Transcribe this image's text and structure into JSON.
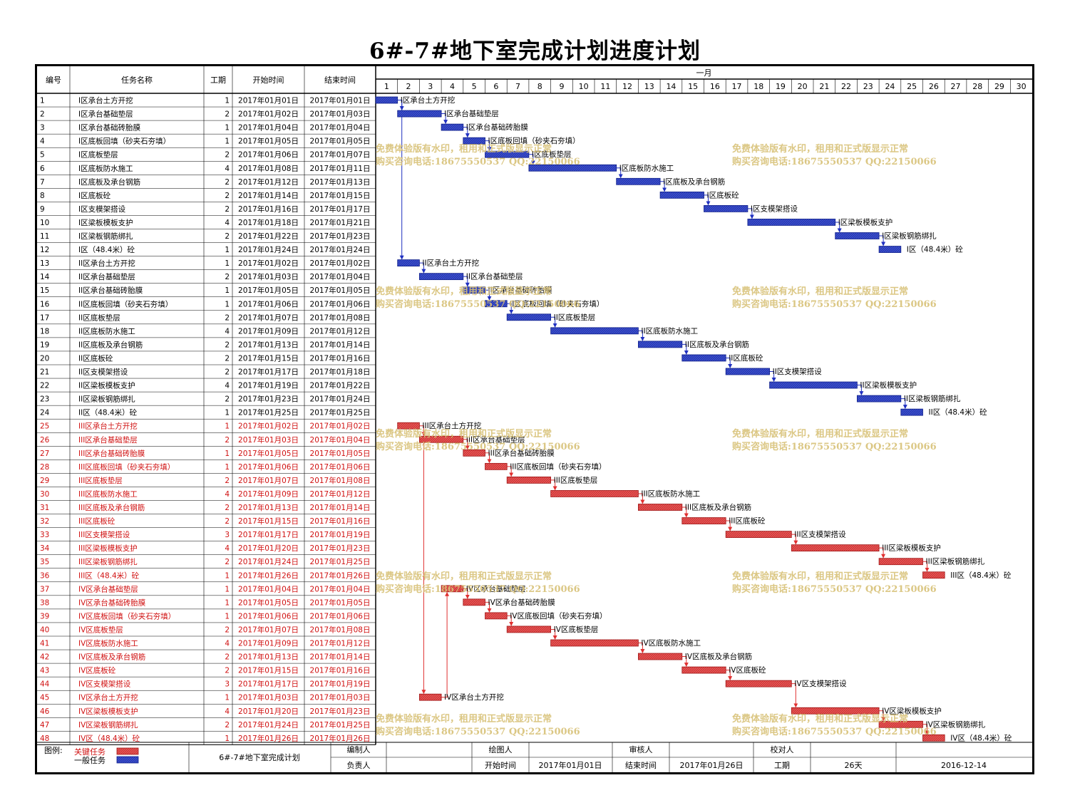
{
  "title": "6#-7#地下室完成计划进度计划",
  "headers": {
    "id": "编号",
    "name": "任务名称",
    "dur": "工期",
    "start": "开始时间",
    "end": "结束时间",
    "month": "一月"
  },
  "days": [
    "1",
    "2",
    "3",
    "4",
    "5",
    "6",
    "7",
    "8",
    "9",
    "10",
    "11",
    "12",
    "13",
    "14",
    "15",
    "16",
    "17",
    "18",
    "19",
    "20",
    "21",
    "22",
    "23",
    "24",
    "25",
    "26",
    "27",
    "28",
    "29",
    "30"
  ],
  "colors": {
    "critical": "#e85555",
    "normal": "#3a4fcf",
    "criticalText": "#d01010",
    "link_red": "#e03030",
    "link_blue": "#2030c0",
    "watermark": "#d8c177"
  },
  "watermark": {
    "line1": "免费体验版有水印，租用和正式版显示正常",
    "line2": "购买咨询电话:18675550537 QQ:22150066"
  },
  "chart_data": {
    "type": "gantt",
    "x_unit": "day of January 2017",
    "xlim": [
      1,
      30
    ],
    "tasks": [
      {
        "id": "1",
        "name": "I区承台土方开挖",
        "dur": "1",
        "start": "2017年01月01日",
        "end": "2017年01月01日",
        "s": 1,
        "e": 1,
        "critical": false
      },
      {
        "id": "2",
        "name": "I区承台基础垫层",
        "dur": "2",
        "start": "2017年01月02日",
        "end": "2017年01月03日",
        "s": 2,
        "e": 3,
        "critical": false
      },
      {
        "id": "3",
        "name": "I区承台基础砖胎膜",
        "dur": "1",
        "start": "2017年01月04日",
        "end": "2017年01月04日",
        "s": 4,
        "e": 4,
        "critical": false
      },
      {
        "id": "4",
        "name": "I区底板回填（砂夹石夯填）",
        "dur": "1",
        "start": "2017年01月05日",
        "end": "2017年01月05日",
        "s": 5,
        "e": 5,
        "critical": false
      },
      {
        "id": "5",
        "name": "I区底板垫层",
        "dur": "2",
        "start": "2017年01月06日",
        "end": "2017年01月07日",
        "s": 6,
        "e": 7,
        "critical": false
      },
      {
        "id": "6",
        "name": "I区底板防水施工",
        "dur": "4",
        "start": "2017年01月08日",
        "end": "2017年01月11日",
        "s": 8,
        "e": 11,
        "critical": false
      },
      {
        "id": "7",
        "name": "I区底板及承台钢筋",
        "dur": "2",
        "start": "2017年01月12日",
        "end": "2017年01月13日",
        "s": 12,
        "e": 13,
        "critical": false
      },
      {
        "id": "8",
        "name": "I区底板砼",
        "dur": "2",
        "start": "2017年01月14日",
        "end": "2017年01月15日",
        "s": 14,
        "e": 15,
        "critical": false
      },
      {
        "id": "9",
        "name": "I区支模架搭设",
        "dur": "2",
        "start": "2017年01月16日",
        "end": "2017年01月17日",
        "s": 16,
        "e": 17,
        "critical": false
      },
      {
        "id": "10",
        "name": "I区梁板模板支护",
        "dur": "4",
        "start": "2017年01月18日",
        "end": "2017年01月21日",
        "s": 18,
        "e": 21,
        "critical": false
      },
      {
        "id": "11",
        "name": "I区梁板钢筋绑扎",
        "dur": "2",
        "start": "2017年01月22日",
        "end": "2017年01月23日",
        "s": 22,
        "e": 23,
        "critical": false
      },
      {
        "id": "12",
        "name": "I区（48.4米）砼",
        "dur": "1",
        "start": "2017年01月24日",
        "end": "2017年01月24日",
        "s": 24,
        "e": 24,
        "critical": false
      },
      {
        "id": "13",
        "name": "II区承台土方开挖",
        "dur": "1",
        "start": "2017年01月02日",
        "end": "2017年01月02日",
        "s": 2,
        "e": 2,
        "critical": false
      },
      {
        "id": "14",
        "name": "II区承台基础垫层",
        "dur": "2",
        "start": "2017年01月03日",
        "end": "2017年01月04日",
        "s": 3,
        "e": 4,
        "critical": false
      },
      {
        "id": "15",
        "name": "II区承台基础砖胎膜",
        "dur": "1",
        "start": "2017年01月05日",
        "end": "2017年01月05日",
        "s": 5,
        "e": 5,
        "critical": false
      },
      {
        "id": "16",
        "name": "II区底板回填（砂夹石夯填）",
        "dur": "1",
        "start": "2017年01月06日",
        "end": "2017年01月06日",
        "s": 6,
        "e": 6,
        "critical": false
      },
      {
        "id": "17",
        "name": "II区底板垫层",
        "dur": "2",
        "start": "2017年01月07日",
        "end": "2017年01月08日",
        "s": 7,
        "e": 8,
        "critical": false
      },
      {
        "id": "18",
        "name": "II区底板防水施工",
        "dur": "4",
        "start": "2017年01月09日",
        "end": "2017年01月12日",
        "s": 9,
        "e": 12,
        "critical": false
      },
      {
        "id": "19",
        "name": "II区底板及承台钢筋",
        "dur": "2",
        "start": "2017年01月13日",
        "end": "2017年01月14日",
        "s": 13,
        "e": 14,
        "critical": false
      },
      {
        "id": "20",
        "name": "II区底板砼",
        "dur": "2",
        "start": "2017年01月15日",
        "end": "2017年01月16日",
        "s": 15,
        "e": 16,
        "critical": false
      },
      {
        "id": "21",
        "name": "II区支模架搭设",
        "dur": "2",
        "start": "2017年01月17日",
        "end": "2017年01月18日",
        "s": 17,
        "e": 18,
        "critical": false
      },
      {
        "id": "22",
        "name": "II区梁板模板支护",
        "dur": "4",
        "start": "2017年01月19日",
        "end": "2017年01月22日",
        "s": 19,
        "e": 22,
        "critical": false
      },
      {
        "id": "23",
        "name": "II区梁板钢筋绑扎",
        "dur": "2",
        "start": "2017年01月23日",
        "end": "2017年01月24日",
        "s": 23,
        "e": 24,
        "critical": false
      },
      {
        "id": "24",
        "name": "II区（48.4米）砼",
        "dur": "1",
        "start": "2017年01月25日",
        "end": "2017年01月25日",
        "s": 25,
        "e": 25,
        "critical": false
      },
      {
        "id": "25",
        "name": "III区承台土方开挖",
        "dur": "1",
        "start": "2017年01月02日",
        "end": "2017年01月02日",
        "s": 2,
        "e": 2,
        "critical": true
      },
      {
        "id": "26",
        "name": "III区承台基础垫层",
        "dur": "2",
        "start": "2017年01月03日",
        "end": "2017年01月04日",
        "s": 3,
        "e": 4,
        "critical": true
      },
      {
        "id": "27",
        "name": "III区承台基础砖胎膜",
        "dur": "1",
        "start": "2017年01月05日",
        "end": "2017年01月05日",
        "s": 5,
        "e": 5,
        "critical": true
      },
      {
        "id": "28",
        "name": "III区底板回填（砂夹石夯填）",
        "dur": "1",
        "start": "2017年01月06日",
        "end": "2017年01月06日",
        "s": 6,
        "e": 6,
        "critical": true
      },
      {
        "id": "29",
        "name": "III区底板垫层",
        "dur": "2",
        "start": "2017年01月07日",
        "end": "2017年01月08日",
        "s": 7,
        "e": 8,
        "critical": true
      },
      {
        "id": "30",
        "name": "III区底板防水施工",
        "dur": "4",
        "start": "2017年01月09日",
        "end": "2017年01月12日",
        "s": 9,
        "e": 12,
        "critical": true
      },
      {
        "id": "31",
        "name": "III区底板及承台钢筋",
        "dur": "2",
        "start": "2017年01月13日",
        "end": "2017年01月14日",
        "s": 13,
        "e": 14,
        "critical": true
      },
      {
        "id": "32",
        "name": "III区底板砼",
        "dur": "2",
        "start": "2017年01月15日",
        "end": "2017年01月16日",
        "s": 15,
        "e": 16,
        "critical": true
      },
      {
        "id": "33",
        "name": "III区支模架搭设",
        "dur": "3",
        "start": "2017年01月17日",
        "end": "2017年01月19日",
        "s": 17,
        "e": 19,
        "critical": true
      },
      {
        "id": "34",
        "name": "III区梁板模板支护",
        "dur": "4",
        "start": "2017年01月20日",
        "end": "2017年01月23日",
        "s": 20,
        "e": 23,
        "critical": true
      },
      {
        "id": "35",
        "name": "III区梁板钢筋绑扎",
        "dur": "2",
        "start": "2017年01月24日",
        "end": "2017年01月25日",
        "s": 24,
        "e": 25,
        "critical": true
      },
      {
        "id": "36",
        "name": "III区（48.4米）砼",
        "dur": "1",
        "start": "2017年01月26日",
        "end": "2017年01月26日",
        "s": 26,
        "e": 26,
        "critical": true
      },
      {
        "id": "37",
        "name": "IV区承台基础垫层",
        "dur": "1",
        "start": "2017年01月04日",
        "end": "2017年01月04日",
        "s": 4,
        "e": 4,
        "critical": true
      },
      {
        "id": "38",
        "name": "IV区承台基础砖胎膜",
        "dur": "1",
        "start": "2017年01月05日",
        "end": "2017年01月05日",
        "s": 5,
        "e": 5,
        "critical": true
      },
      {
        "id": "39",
        "name": "IV区底板回填（砂夹石夯填）",
        "dur": "1",
        "start": "2017年01月06日",
        "end": "2017年01月06日",
        "s": 6,
        "e": 6,
        "critical": true
      },
      {
        "id": "40",
        "name": "IV区底板垫层",
        "dur": "2",
        "start": "2017年01月07日",
        "end": "2017年01月08日",
        "s": 7,
        "e": 8,
        "critical": true
      },
      {
        "id": "41",
        "name": "IV区底板防水施工",
        "dur": "4",
        "start": "2017年01月09日",
        "end": "2017年01月12日",
        "s": 9,
        "e": 12,
        "critical": true
      },
      {
        "id": "42",
        "name": "IV区底板及承台钢筋",
        "dur": "2",
        "start": "2017年01月13日",
        "end": "2017年01月14日",
        "s": 13,
        "e": 14,
        "critical": true
      },
      {
        "id": "43",
        "name": "IV区底板砼",
        "dur": "2",
        "start": "2017年01月15日",
        "end": "2017年01月16日",
        "s": 15,
        "e": 16,
        "critical": true
      },
      {
        "id": "44",
        "name": "IV区支模架搭设",
        "dur": "3",
        "start": "2017年01月17日",
        "end": "2017年01月19日",
        "s": 17,
        "e": 19,
        "critical": true
      },
      {
        "id": "45",
        "name": "IV区承台土方开挖",
        "dur": "1",
        "start": "2017年01月03日",
        "end": "2017年01月03日",
        "s": 3,
        "e": 3,
        "critical": true
      },
      {
        "id": "46",
        "name": "IV区梁板模板支护",
        "dur": "4",
        "start": "2017年01月20日",
        "end": "2017年01月23日",
        "s": 20,
        "e": 23,
        "critical": true
      },
      {
        "id": "47",
        "name": "IV区梁板钢筋绑扎",
        "dur": "2",
        "start": "2017年01月24日",
        "end": "2017年01月25日",
        "s": 24,
        "e": 25,
        "critical": true
      },
      {
        "id": "48",
        "name": "IV区（48.4米）砼",
        "dur": "1",
        "start": "2017年01月26日",
        "end": "2017年01月26日",
        "s": 26,
        "e": 26,
        "critical": true
      }
    ],
    "links": [
      [
        1,
        2
      ],
      [
        2,
        3
      ],
      [
        3,
        4
      ],
      [
        4,
        5
      ],
      [
        5,
        6
      ],
      [
        6,
        7
      ],
      [
        7,
        8
      ],
      [
        8,
        9
      ],
      [
        9,
        10
      ],
      [
        10,
        11
      ],
      [
        11,
        12
      ],
      [
        1,
        13
      ],
      [
        13,
        14
      ],
      [
        14,
        15
      ],
      [
        15,
        16
      ],
      [
        16,
        17
      ],
      [
        17,
        18
      ],
      [
        18,
        19
      ],
      [
        19,
        20
      ],
      [
        20,
        21
      ],
      [
        21,
        22
      ],
      [
        22,
        23
      ],
      [
        23,
        24
      ],
      [
        25,
        26
      ],
      [
        26,
        27
      ],
      [
        27,
        28
      ],
      [
        28,
        29
      ],
      [
        29,
        30
      ],
      [
        30,
        31
      ],
      [
        31,
        32
      ],
      [
        32,
        33
      ],
      [
        33,
        34
      ],
      [
        34,
        35
      ],
      [
        35,
        36
      ],
      [
        26,
        45
      ],
      [
        45,
        37
      ],
      [
        37,
        38
      ],
      [
        38,
        39
      ],
      [
        39,
        40
      ],
      [
        40,
        41
      ],
      [
        41,
        42
      ],
      [
        42,
        43
      ],
      [
        43,
        44
      ],
      [
        44,
        46
      ],
      [
        46,
        47
      ],
      [
        47,
        48
      ]
    ]
  },
  "footer": {
    "legend_label": "图例:",
    "legend_critical": "关键任务",
    "legend_normal": "一般任务",
    "project_name": "6#-7#地下室完成计划",
    "compiler_label": "编制人",
    "compiler_value": "",
    "drafter_label": "绘图人",
    "drafter_value": "",
    "reviewer_label": "审核人",
    "reviewer_value": "",
    "checker_label": "校对人",
    "checker_value": "",
    "owner_label": "负责人",
    "owner_value": "",
    "start_label": "开始时间",
    "start_value": "2017年01月01日",
    "end_label": "结束时间",
    "end_value": "2017年01月26日",
    "duration_label": "工期",
    "duration_value": "26天",
    "date_value": "2016-12-14"
  }
}
